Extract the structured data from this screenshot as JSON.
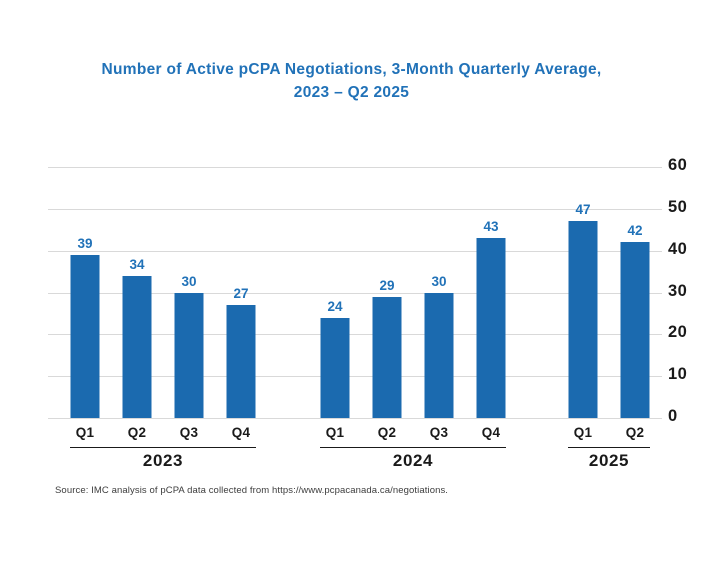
{
  "header": {
    "title_lines": [
      "Number of Active pCPA Negotiations, 3-Month Quarterly Average,",
      "2023 – Q2 2025"
    ]
  },
  "colors": {
    "bar": "#1B6AAF",
    "accent_text": "#2172B8",
    "axis_text": "#1A1A1A",
    "gridline": "#D9D9D9",
    "source_text": "#3D3D3D",
    "background": "#FFFFFF"
  },
  "chart_data": {
    "type": "bar",
    "title": "Number of Active pCPA Negotiations, 3-Month Quarterly Average, 2023 – Q2 2025",
    "xlabel": "",
    "ylabel": "",
    "ylim": [
      0,
      60
    ],
    "yticks": [
      0,
      10,
      20,
      30,
      40,
      50,
      60
    ],
    "y_axis_side": "right",
    "grid": "horizontal",
    "legend": "none",
    "bar_value_labels": true,
    "groups": [
      {
        "year": "2023",
        "categories": [
          "Q1",
          "Q2",
          "Q3",
          "Q4"
        ],
        "values": [
          39,
          34,
          30,
          27
        ]
      },
      {
        "year": "2024",
        "categories": [
          "Q1",
          "Q2",
          "Q3",
          "Q4"
        ],
        "values": [
          24,
          29,
          30,
          43
        ]
      },
      {
        "year": "2025",
        "categories": [
          "Q1",
          "Q2"
        ],
        "values": [
          47,
          42
        ]
      }
    ],
    "source": "Source: IMC analysis of pCPA data collected from https://www.pcpacanada.ca/negotiations."
  }
}
